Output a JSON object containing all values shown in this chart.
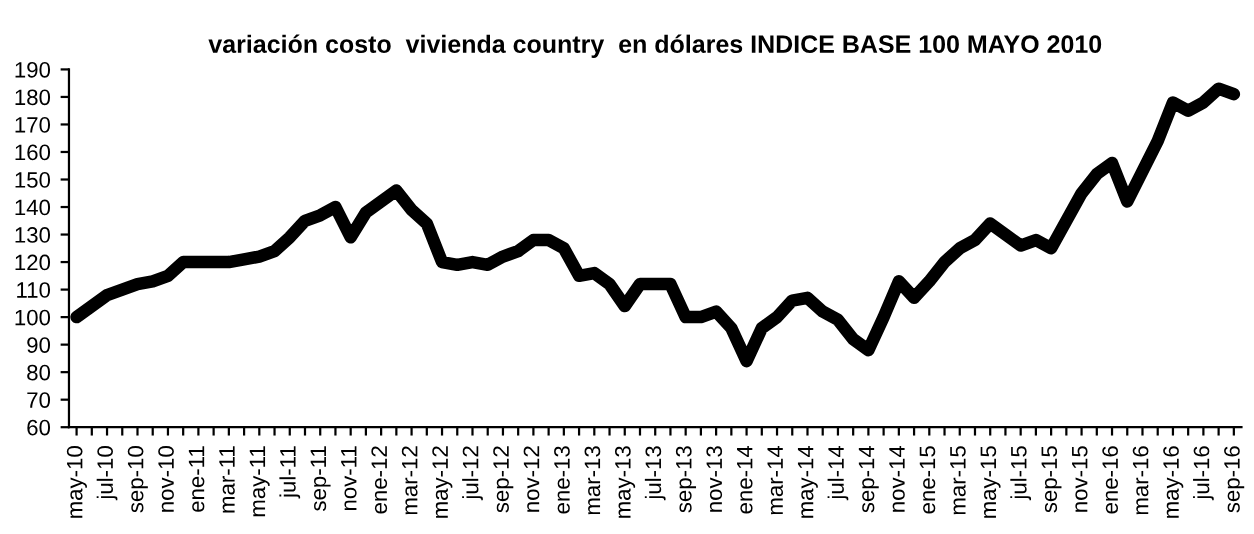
{
  "chart_data": {
    "type": "line",
    "title": "variación costo  vivienda country  en dólares INDICE BASE 100 MAYO 2010",
    "categories": [
      "may-10",
      null,
      "jul-10",
      null,
      "sep-10",
      null,
      "nov-10",
      null,
      "ene-11",
      null,
      "mar-11",
      null,
      "may-11",
      null,
      "jul-11",
      null,
      "sep-11",
      null,
      "nov-11",
      null,
      "ene-12",
      null,
      "mar-12",
      null,
      "may-12",
      null,
      "jul-12",
      null,
      "sep-12",
      null,
      "nov-12",
      null,
      "ene-13",
      null,
      "mar-13",
      null,
      "may-13",
      null,
      "jul-13",
      null,
      "sep-13",
      null,
      "nov-13",
      null,
      "ene-14",
      null,
      "mar-14",
      null,
      "may-14",
      null,
      "jul-14",
      null,
      "sep-14",
      null,
      "nov-14",
      null,
      "ene-15",
      null,
      "mar-15",
      null,
      "may-15",
      null,
      "jul-15",
      null,
      "sep-15",
      null,
      "nov-15",
      null,
      "ene-16",
      null,
      "mar-16",
      null,
      "may-16",
      null,
      "jul-16",
      null,
      "sep-16"
    ],
    "series": [
      {
        "color": "#000000",
        "values": [
          100,
          104,
          108,
          110,
          112,
          113,
          115,
          120,
          120,
          120,
          120,
          121,
          122,
          124,
          129,
          135,
          137,
          140,
          129,
          138,
          142,
          146,
          139,
          134,
          120,
          119,
          120,
          119,
          122,
          124,
          128,
          128,
          125,
          115,
          116,
          112,
          104,
          112,
          112,
          112,
          100,
          100,
          102,
          96,
          84,
          96,
          100,
          106,
          107,
          102,
          99,
          92,
          88,
          100,
          113,
          107,
          113,
          120,
          125,
          128,
          134,
          130,
          126,
          128,
          125,
          135,
          145,
          152,
          156,
          142,
          153,
          164,
          178,
          175,
          178,
          183,
          181
        ]
      }
    ],
    "ylim": [
      60,
      190
    ],
    "yticks": [
      60,
      70,
      80,
      90,
      100,
      110,
      120,
      130,
      140,
      150,
      160,
      170,
      180,
      190
    ],
    "grid": false,
    "legend": false,
    "marker": "none",
    "line_style": "solid"
  }
}
